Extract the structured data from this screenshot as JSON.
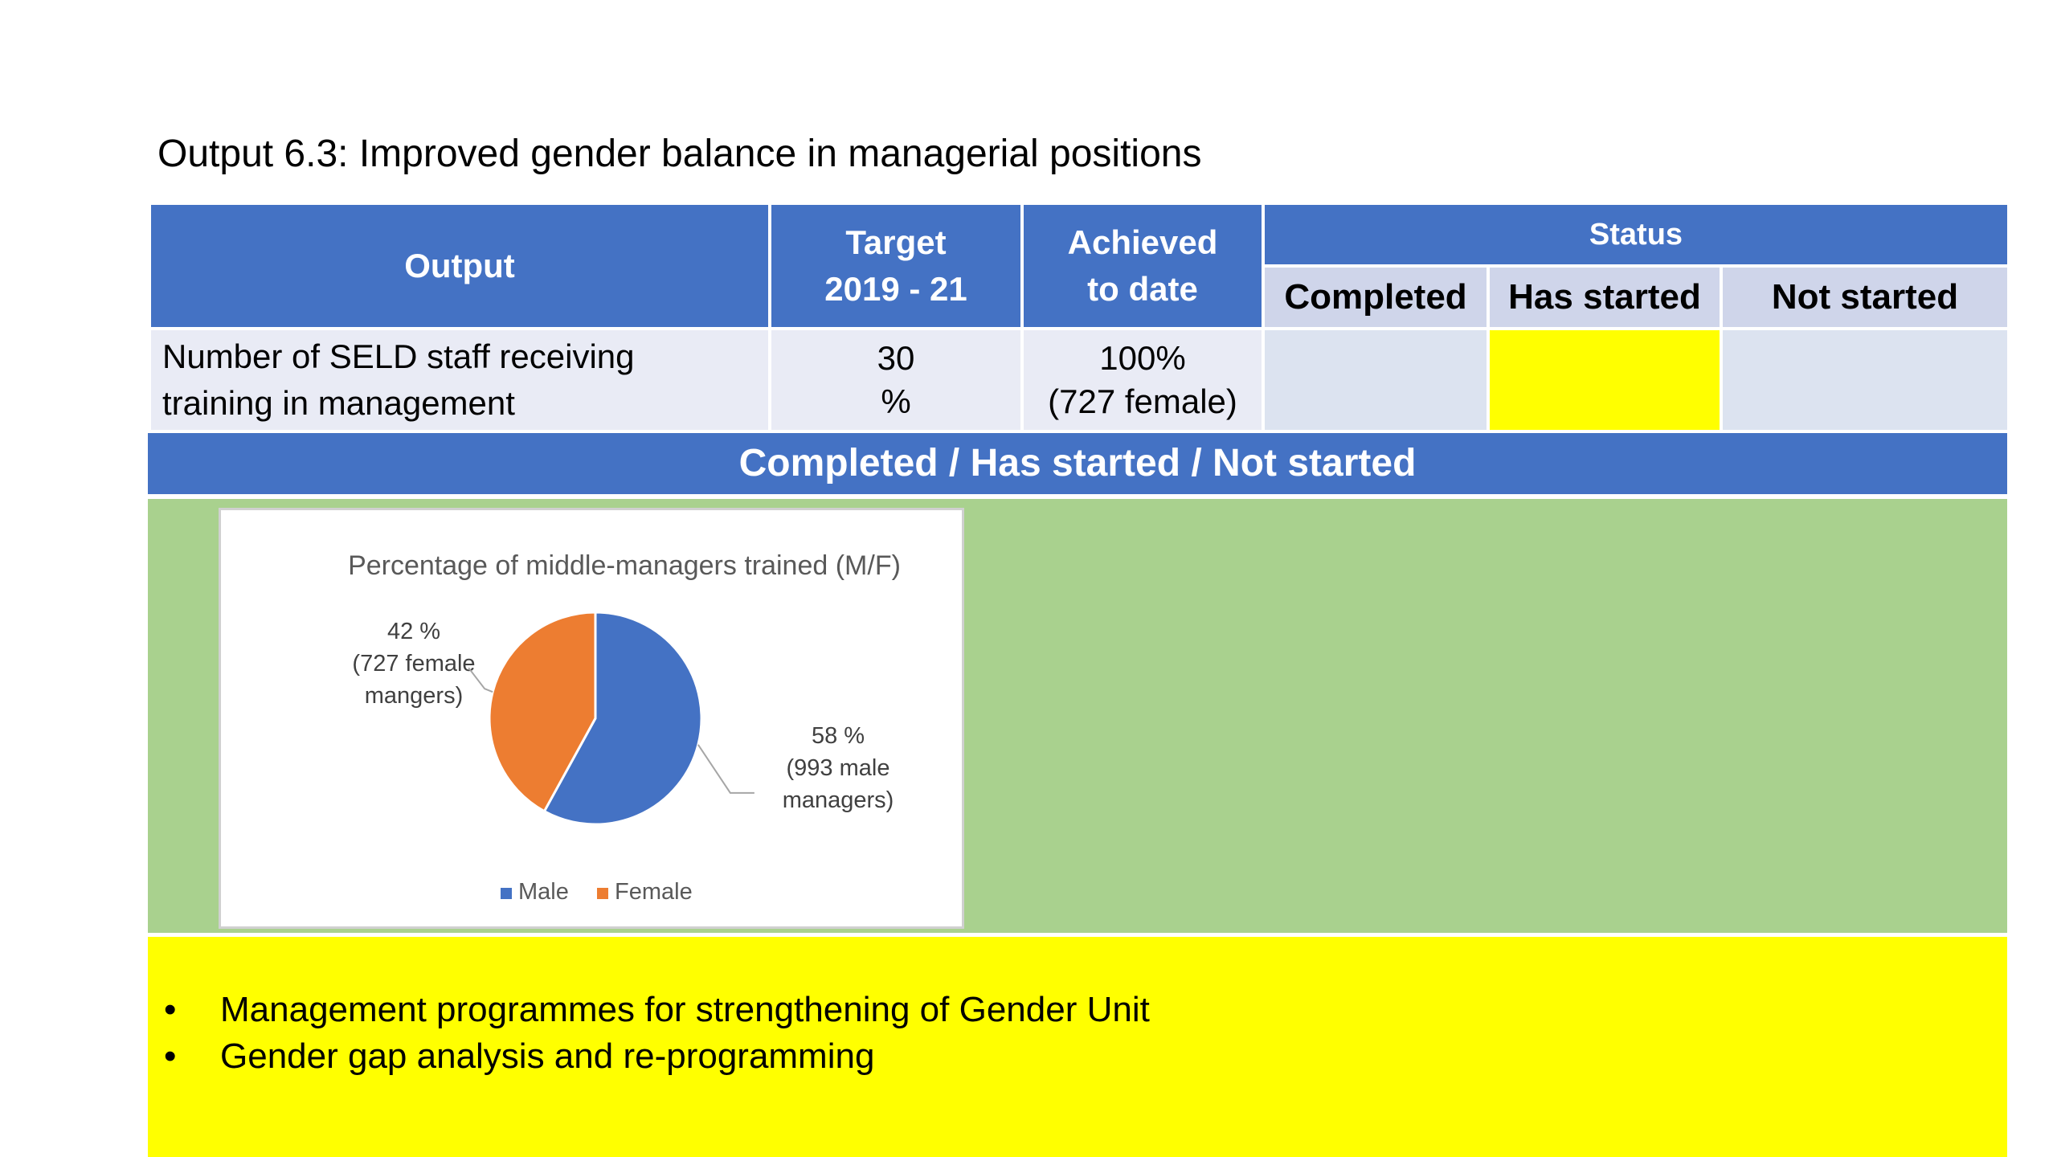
{
  "title": "Output 6.3: Improved gender balance in managerial positions",
  "table": {
    "headers": {
      "output": "Output",
      "target_line1": "Target",
      "target_line2": "2019 - 21",
      "achieved_line1": "Achieved",
      "achieved_line2": "to date",
      "status": "Status",
      "completed": "Completed",
      "has_started": "Has started",
      "not_started": "Not started"
    },
    "row": {
      "output_line1": "Number of SELD staff receiving",
      "output_line2": "training in management",
      "target_line1": "30",
      "target_line2": "%",
      "achieved_line1": "100%",
      "achieved_line2": "(727 female)",
      "status": "has_started"
    }
  },
  "legend_bar": "Completed / Has started / Not started",
  "colors": {
    "header_blue": "#4472c4",
    "completed_green": "#a9d18e",
    "has_started_yellow": "#ffff00",
    "male_blue": "#4472c4",
    "female_orange": "#ed7d31"
  },
  "chart_data": {
    "type": "pie",
    "title": "Percentage of middle-managers trained (M/F)",
    "categories": [
      "Male",
      "Female"
    ],
    "values": [
      58,
      42
    ],
    "data_labels": [
      [
        "58 %",
        "(993 male",
        "managers)"
      ],
      [
        "42 %",
        "(727 female",
        "mangers)"
      ]
    ],
    "legend": "bottom"
  },
  "activities": [
    "Management programmes for strengthening of Gender Unit",
    "Gender gap analysis and re-programming"
  ]
}
